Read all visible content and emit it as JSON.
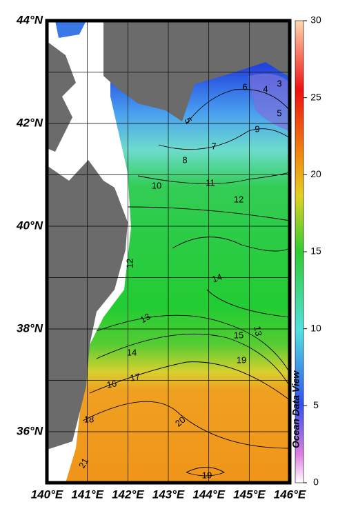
{
  "map": {
    "lat_labels": [
      "44°N",
      "42°N",
      "40°N",
      "38°N",
      "36°N"
    ],
    "lon_labels": [
      "140°E",
      "141°E",
      "142°E",
      "143°E",
      "144°E",
      "145°E",
      "146°E"
    ],
    "contour_labels": [
      3,
      4,
      5,
      5,
      6,
      7,
      8,
      9,
      10,
      11,
      12,
      12,
      13,
      13,
      14,
      14,
      15,
      16,
      17,
      18,
      19,
      19,
      20,
      21
    ],
    "colorbar": {
      "lim": [
        0,
        30
      ],
      "ticks": [
        0,
        5,
        10,
        15,
        20,
        25,
        30
      ]
    },
    "watermark": "Ocean Data View"
  }
}
